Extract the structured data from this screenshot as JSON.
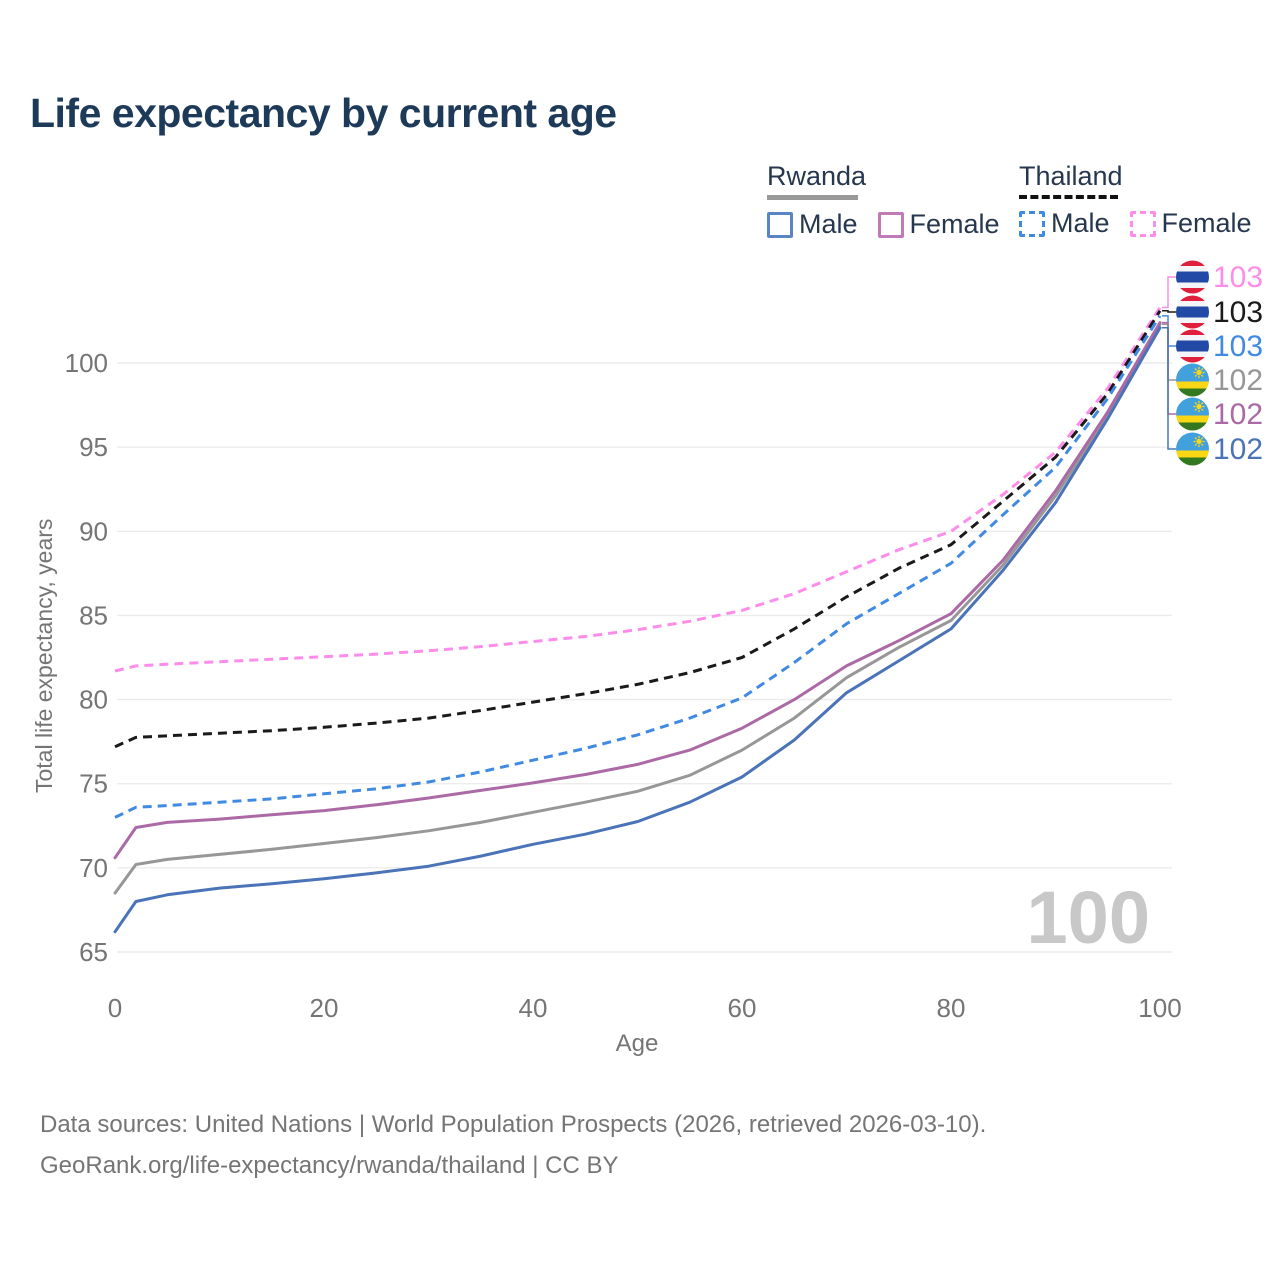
{
  "title": "Life expectancy by current age",
  "legend": {
    "groups": [
      {
        "label": "Rwanda",
        "line_style": "solid",
        "underline_color": "#999999",
        "items": [
          {
            "label": "Male",
            "color": "#5b84c4"
          },
          {
            "label": "Female",
            "color": "#c07ab8"
          }
        ]
      },
      {
        "label": "Thailand",
        "line_style": "dashed",
        "underline_color": "#111111",
        "items": [
          {
            "label": "Male",
            "color": "#418ae2"
          },
          {
            "label": "Female",
            "color": "#fd8ceb"
          }
        ]
      }
    ]
  },
  "age_counter": "100",
  "footer": {
    "line1": "Data sources: United Nations | World Population Prospects (2026, retrieved 2026-03-10).",
    "line2": "GeoRank.org/life-expectancy/rwanda/thailand | CC BY"
  },
  "chart_data": {
    "type": "line",
    "title": "Life expectancy by current age",
    "xlabel": "Age",
    "ylabel": "Total life expectancy, years",
    "xlim": [
      0,
      100
    ],
    "ylim": [
      65,
      103.5
    ],
    "x_ticks": [
      "0",
      "20",
      "40",
      "60",
      "80",
      "100"
    ],
    "y_ticks": [
      "65",
      "70",
      "75",
      "80",
      "85",
      "90",
      "95",
      "100"
    ],
    "grid": "horizontal",
    "legend_position": "top-right",
    "x": [
      0,
      2,
      5,
      10,
      15,
      20,
      25,
      30,
      35,
      40,
      45,
      50,
      55,
      60,
      65,
      70,
      75,
      80,
      85,
      90,
      95,
      100
    ],
    "series": [
      {
        "name": "Thailand Female",
        "country": "Thailand",
        "sex": "Female",
        "color": "#fd8ceb",
        "dash": "dashed",
        "flag": "thailand",
        "end_label": "103",
        "values": [
          81.7,
          82.0,
          82.1,
          82.25,
          82.4,
          82.55,
          82.7,
          82.9,
          83.15,
          83.45,
          83.75,
          84.15,
          84.65,
          85.3,
          86.3,
          87.6,
          88.9,
          90.0,
          92.2,
          94.7,
          98.5,
          103.3
        ]
      },
      {
        "name": "Thailand",
        "country": "Thailand",
        "sex": "Both sexes",
        "color": "#1a1a1a",
        "dash": "dashed",
        "flag": "thailand",
        "end_label": "103",
        "values": [
          77.2,
          77.75,
          77.85,
          78.0,
          78.15,
          78.35,
          78.6,
          78.9,
          79.35,
          79.85,
          80.35,
          80.9,
          81.6,
          82.5,
          84.2,
          86.1,
          87.8,
          89.2,
          91.8,
          94.4,
          98.2,
          103.1
        ]
      },
      {
        "name": "Thailand Male",
        "country": "Thailand",
        "sex": "Male",
        "color": "#418ae2",
        "dash": "dashed",
        "flag": "thailand",
        "end_label": "103",
        "values": [
          73.0,
          73.6,
          73.7,
          73.9,
          74.1,
          74.4,
          74.7,
          75.1,
          75.7,
          76.4,
          77.1,
          77.9,
          78.9,
          80.1,
          82.2,
          84.5,
          86.3,
          88.1,
          91.0,
          93.8,
          97.9,
          102.8
        ]
      },
      {
        "name": "Rwanda",
        "country": "Rwanda",
        "sex": "Both sexes",
        "color": "#979797",
        "dash": "solid",
        "flag": "rwanda",
        "end_label": "102",
        "values": [
          68.5,
          70.2,
          70.5,
          70.8,
          71.1,
          71.45,
          71.8,
          72.2,
          72.7,
          73.3,
          73.9,
          74.55,
          75.5,
          77.0,
          78.9,
          81.3,
          83.1,
          84.7,
          88.0,
          92.1,
          96.9,
          102.3
        ]
      },
      {
        "name": "Rwanda Female",
        "country": "Rwanda",
        "sex": "Female",
        "color": "#ab6aa6",
        "dash": "solid",
        "flag": "rwanda",
        "end_label": "102",
        "values": [
          70.6,
          72.4,
          72.7,
          72.9,
          73.15,
          73.4,
          73.75,
          74.15,
          74.6,
          75.05,
          75.55,
          76.15,
          77.0,
          78.3,
          80.0,
          82.0,
          83.5,
          85.1,
          88.3,
          92.4,
          97.1,
          102.4
        ]
      },
      {
        "name": "Rwanda Male",
        "country": "Rwanda",
        "sex": "Male",
        "color": "#4a73b8",
        "dash": "solid",
        "flag": "rwanda",
        "end_label": "102",
        "values": [
          66.2,
          68.0,
          68.4,
          68.8,
          69.05,
          69.35,
          69.7,
          70.1,
          70.7,
          71.4,
          72.0,
          72.75,
          73.9,
          75.4,
          77.6,
          80.4,
          82.3,
          84.2,
          87.7,
          91.7,
          96.7,
          102.1
        ]
      }
    ]
  },
  "colors": {
    "grid": "#ececec",
    "tick_label": "#757575",
    "axis_title": "#757575",
    "page_title": "#1e3a59",
    "age_counter": "#c8c8c8"
  }
}
